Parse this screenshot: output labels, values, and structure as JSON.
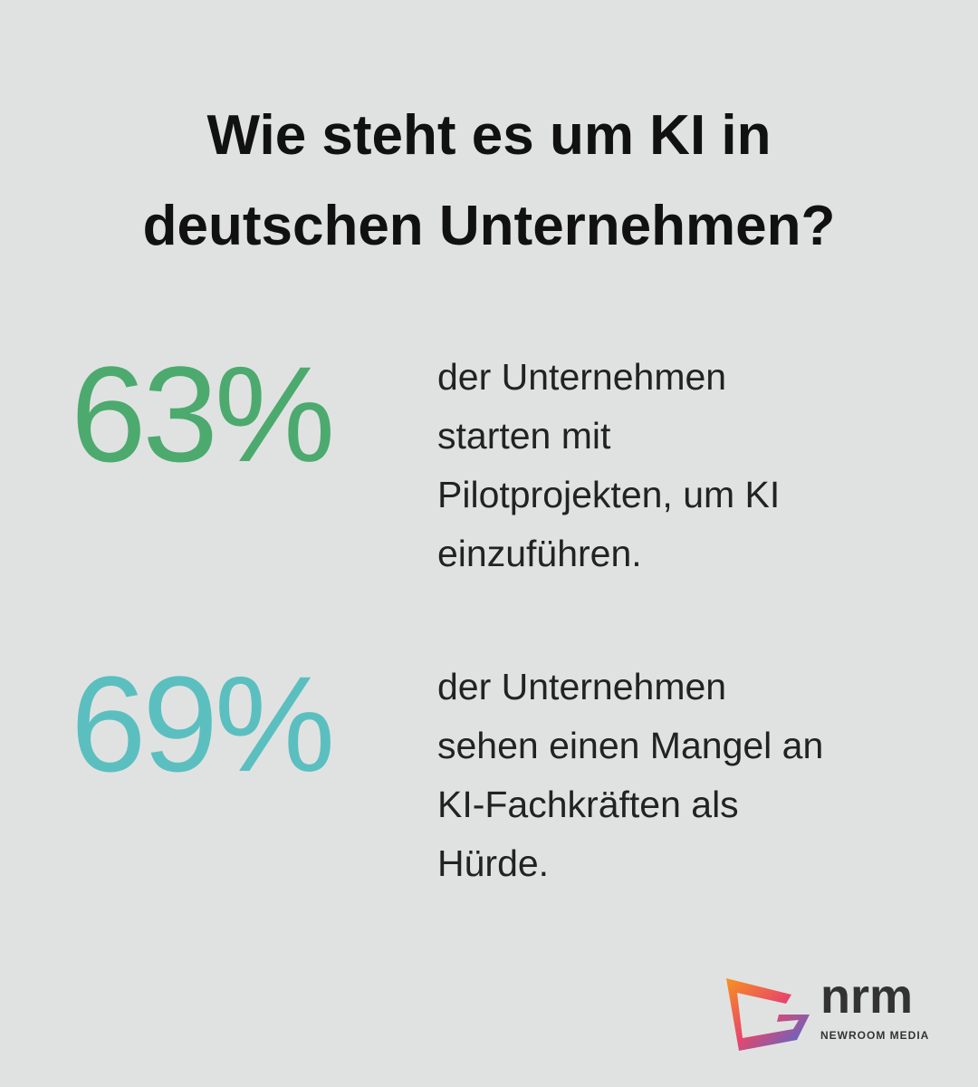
{
  "header": {
    "title_lines": [
      "Wie steht es um KI in",
      "deutschen Unternehmen?"
    ]
  },
  "stats": [
    {
      "value": "63%",
      "color": "#4caa6e",
      "lines": [
        "der Unternehmen",
        "starten mit",
        "Pilotprojekten, um KI",
        "einzuführen."
      ]
    },
    {
      "value": "69%",
      "color": "#5bbfc0",
      "lines": [
        "der Unternehmen",
        "sehen einen Mangel an",
        "KI-Fachkräften als",
        "Hürde."
      ]
    }
  ],
  "logo": {
    "name": "nrm",
    "subtitle": "NEWROOM MEDIA"
  }
}
